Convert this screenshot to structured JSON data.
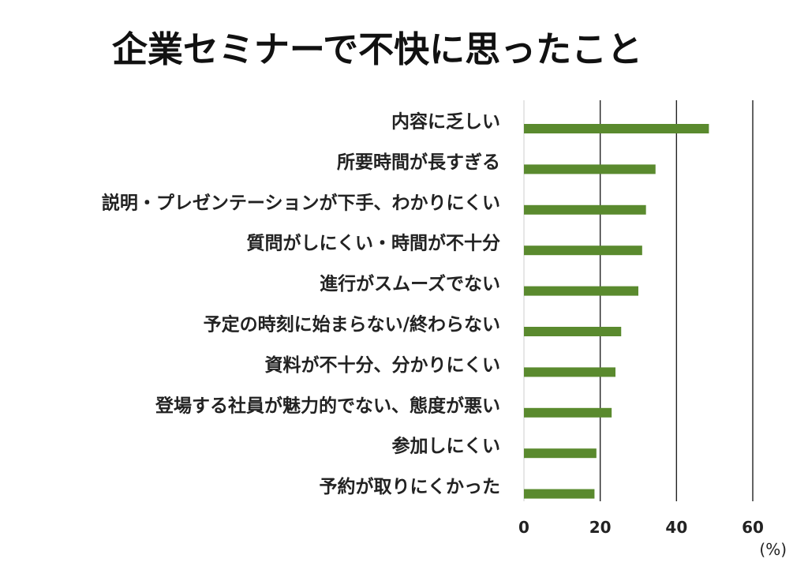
{
  "chart_data": {
    "type": "bar",
    "orientation": "horizontal",
    "title": "企業セミナーで不快に思ったこと",
    "xlabel": "",
    "ylabel": "",
    "unit_label": "(%)",
    "categories": [
      "内容に乏しい",
      "所要時間が長すぎる",
      "説明・プレゼンテーションが下手、わかりにくい",
      "質問がしにくい・時間が不十分",
      "進行がスムーズでない",
      "予定の時刻に始まらない/終わらない",
      "資料が不十分、分かりにくい",
      "登場する社員が魅力的でない、態度が悪い",
      "参加しにくい",
      "予約が取りにくかった"
    ],
    "values": [
      48.5,
      34.5,
      32,
      31,
      30,
      25.5,
      24,
      23,
      19,
      18.5
    ],
    "xlim": [
      0,
      60
    ],
    "xticks": [
      0,
      20,
      40,
      60
    ],
    "xtick_labels": [
      "0",
      "20",
      "40",
      "60"
    ],
    "grid": true,
    "legend": "none",
    "bar_color": "#5a8a2e",
    "gridline_color": "#222222"
  }
}
